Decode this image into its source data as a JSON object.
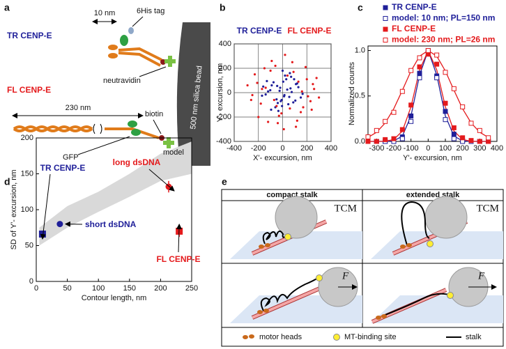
{
  "panel_labels": [
    "a",
    "b",
    "c",
    "d",
    "e"
  ],
  "diagram_a": {
    "tr_label": "TR CENP-E",
    "tr_length": "10 nm",
    "his_tag": "6His tag",
    "neutravidin": "neutravidin",
    "fl_label": "FL CENP-E",
    "fl_length": "230 nm",
    "biotin": "biotin",
    "gfp": "GFP",
    "bead": "500 nm silica bead"
  },
  "chart_data": [
    {
      "type": "scatter",
      "xlabel": "X'- excursion, nm",
      "ylabel": "Y'- excursion, nm",
      "xlim": [
        -400,
        400
      ],
      "ylim": [
        -400,
        400
      ],
      "xticks": [
        -400,
        -200,
        0,
        200,
        400
      ],
      "yticks": [
        -400,
        -200,
        0,
        200,
        400
      ],
      "grid": true,
      "series": [
        {
          "name": "TR CENP-E",
          "color": "#1f1f99",
          "marker": "dot",
          "x": [
            12,
            -45,
            88,
            -102,
            30,
            -8,
            65,
            -140,
            110,
            -60,
            5,
            150,
            -25,
            47,
            -90,
            20,
            -170,
            75,
            -35,
            130,
            -15,
            95,
            -120,
            55,
            0,
            -75,
            165,
            -50,
            38,
            -5,
            105,
            -130,
            70,
            -20,
            15,
            -95,
            120,
            -40,
            60,
            -160
          ],
          "values": [
            -30,
            55,
            -80,
            20,
            110,
            -60,
            35,
            -15,
            70,
            -120,
            90,
            -40,
            15,
            -95,
            60,
            140,
            -25,
            5,
            -150,
            45,
            -70,
            110,
            10,
            -35,
            180,
            85,
            -10,
            -55,
            25,
            -110,
            -65,
            95,
            130,
            40,
            -20,
            -140,
            75,
            -85,
            160,
            50
          ]
        },
        {
          "name": "FL CENP-E",
          "color": "#e41a1c",
          "marker": "dot",
          "x": [
            -210,
            150,
            -60,
            260,
            -180,
            90,
            -120,
            300,
            40,
            -250,
            200,
            -30,
            170,
            -150,
            110,
            -290,
            230,
            -90,
            60,
            -200,
            280,
            10,
            -140,
            190,
            -70,
            120,
            -230,
            80,
            -10,
            240,
            -170,
            130,
            -50,
            210,
            -100,
            20,
            -260,
            160,
            -40,
            250
          ],
          "values": [
            80,
            -160,
            220,
            30,
            -90,
            170,
            -240,
            -40,
            140,
            -20,
            110,
            -190,
            -120,
            200,
            -280,
            60,
            -70,
            260,
            -130,
            -200,
            120,
            -300,
            40,
            210,
            -60,
            -230,
            150,
            250,
            -170,
            -140,
            30,
            90,
            -110,
            -30,
            180,
            310,
            -60,
            10,
            -250,
            70
          ]
        }
      ]
    },
    {
      "type": "scatter",
      "xlabel": "Y'- excursion, nm",
      "ylabel": "Normalized counts",
      "xlim": [
        -350,
        400
      ],
      "ylim": [
        0,
        1.05
      ],
      "xticks": [
        -300,
        -200,
        -100,
        0,
        100,
        200,
        300,
        400
      ],
      "yticks": [
        {
          "value": 0,
          "label": "0.0"
        },
        0.5,
        {
          "value": 1,
          "label": "1.0"
        }
      ],
      "series": [
        {
          "name": "TR CENP-E",
          "color": "#1f1f99",
          "marker": "filled",
          "x": [
            -350,
            -300,
            -250,
            -200,
            -150,
            -100,
            -50,
            0,
            50,
            100,
            150,
            200,
            250,
            300,
            350
          ],
          "values": [
            0,
            0,
            0,
            0.01,
            0.05,
            0.28,
            0.75,
            0.98,
            0.72,
            0.33,
            0.08,
            0.01,
            0,
            0,
            0
          ]
        },
        {
          "name": "model: 10 nm; PL=150 nm",
          "color": "#1f1f99",
          "marker": "open",
          "x": [
            -350,
            -300,
            -250,
            -200,
            -150,
            -100,
            -50,
            0,
            50,
            100,
            150,
            200,
            250,
            300,
            350
          ],
          "values": [
            0,
            0,
            0,
            0,
            0.03,
            0.22,
            0.7,
            1,
            0.7,
            0.24,
            0.03,
            0,
            0,
            0,
            0
          ]
        },
        {
          "name": "FL CENP-E",
          "color": "#e41a1c",
          "marker": "filled",
          "x": [
            -350,
            -300,
            -250,
            -200,
            -150,
            -100,
            -50,
            0,
            50,
            100,
            150,
            200,
            250,
            300,
            350
          ],
          "values": [
            0,
            0,
            0.02,
            0.03,
            0.13,
            0.4,
            0.82,
            0.96,
            0.85,
            0.42,
            0.15,
            0.04,
            0.01,
            0,
            0
          ]
        },
        {
          "name": "model: 230 nm; PL=26 nm",
          "color": "#e41a1c",
          "marker": "open",
          "x": [
            -350,
            -300,
            -250,
            -200,
            -150,
            -100,
            -50,
            0,
            50,
            100,
            150,
            200,
            250,
            300,
            350
          ],
          "values": [
            0.05,
            0.12,
            0.22,
            0.32,
            0.55,
            0.78,
            0.92,
            1,
            0.95,
            0.76,
            0.58,
            0.38,
            0.2,
            0.12,
            0.04
          ]
        }
      ],
      "curves": [
        {
          "color": "#1f1f99",
          "x": [
            -350,
            -300,
            -250,
            -200,
            -150,
            -100,
            -50,
            0,
            50,
            100,
            150,
            200,
            250,
            300,
            350
          ],
          "values": [
            0,
            0,
            0,
            0.006,
            0.058,
            0.28,
            0.73,
            1,
            0.73,
            0.28,
            0.058,
            0.006,
            0,
            0,
            0
          ]
        },
        {
          "color": "#e41a1c",
          "x": [
            -350,
            -300,
            -250,
            -200,
            -150,
            -100,
            -50,
            0,
            50,
            100,
            150,
            200,
            250,
            300,
            350
          ],
          "values": [
            0,
            0,
            0.002,
            0.021,
            0.114,
            0.381,
            0.786,
            1,
            0.786,
            0.381,
            0.114,
            0.021,
            0.002,
            0,
            0
          ]
        },
        {
          "color": "#e41a1c",
          "x": [
            -350,
            -300,
            -250,
            -200,
            -150,
            -100,
            -50,
            0,
            50,
            100,
            150,
            200,
            250,
            300,
            350
          ],
          "values": [
            0.044,
            0.101,
            0.203,
            0.36,
            0.563,
            0.775,
            0.938,
            1,
            0.938,
            0.775,
            0.563,
            0.36,
            0.203,
            0.101,
            0.044
          ]
        }
      ]
    },
    {
      "type": "scatter",
      "xlabel": "Contour length, nm",
      "ylabel": "SD of Y'- excursion, nm",
      "xlim": [
        0,
        250
      ],
      "ylim": [
        0,
        200
      ],
      "xticks": [
        0,
        50,
        100,
        150,
        200,
        250
      ],
      "yticks": [
        0,
        50,
        100,
        150,
        200
      ],
      "band": {
        "label": "model",
        "color": "#d9d9d9",
        "x": [
          5,
          50,
          100,
          150,
          200,
          250
        ],
        "lower": [
          50,
          75,
          97,
          118,
          140,
          150
        ],
        "upper": [
          75,
          105,
          125,
          150,
          178,
          195
        ]
      },
      "series": [
        {
          "name": "TR CENP-E",
          "color": "#1f1f99",
          "marker": "square",
          "x": [
            10
          ],
          "values": [
            66
          ]
        },
        {
          "name": "short dsDNA",
          "color": "#1f1f99",
          "marker": "circle",
          "x": [
            38
          ],
          "values": [
            80
          ]
        },
        {
          "name": "long dsDNA",
          "color": "#e41a1c",
          "marker": "circle",
          "x": [
            213
          ],
          "values": [
            132
          ],
          "errors": [
            8
          ]
        },
        {
          "name": "FL CENP-E",
          "color": "#e41a1c",
          "marker": "square",
          "x": [
            230
          ],
          "values": [
            70
          ],
          "errors": [
            8
          ]
        }
      ]
    }
  ],
  "diagram_e": {
    "columns": [
      "compact stalk",
      "extended stalk"
    ],
    "model_labels": [
      "TCM",
      "TCM"
    ],
    "force_labels": [
      "F",
      "F"
    ],
    "legend": [
      "motor heads",
      "MT-binding site",
      "stalk"
    ]
  }
}
